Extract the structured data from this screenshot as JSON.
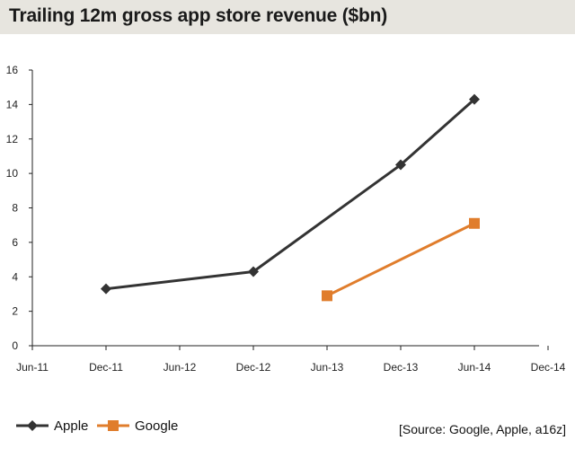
{
  "chart_data": {
    "type": "line",
    "title": "Trailing 12m gross app store revenue ($bn)",
    "xlabel": "",
    "ylabel": "",
    "x_ticks": [
      "Jun-11",
      "Dec-11",
      "Jun-12",
      "Dec-12",
      "Jun-13",
      "Dec-13",
      "Jun-14",
      "Dec-14"
    ],
    "y_ticks": [
      "0",
      "2",
      "4",
      "6",
      "8",
      "10",
      "12",
      "14",
      "16"
    ],
    "ylim": [
      0,
      16
    ],
    "grid": false,
    "series": [
      {
        "name": "Apple",
        "color": "#333333",
        "marker": "diamond",
        "points": [
          {
            "x": "Dec-11",
            "y": 3.3
          },
          {
            "x": "Dec-12",
            "y": 4.3
          },
          {
            "x": "Dec-13",
            "y": 10.5
          },
          {
            "x": "Jun-14",
            "y": 14.3
          }
        ]
      },
      {
        "name": "Google",
        "color": "#e07d2c",
        "marker": "square",
        "points": [
          {
            "x": "Jun-13",
            "y": 2.9
          },
          {
            "x": "Jun-14",
            "y": 7.1
          }
        ]
      }
    ],
    "legend_position": "bottom-left",
    "source": "[Source: Google, Apple, a16z]"
  }
}
